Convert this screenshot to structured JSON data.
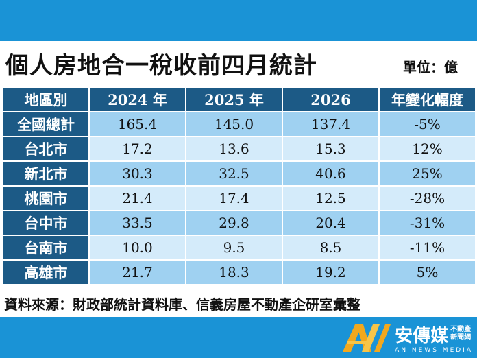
{
  "title": "個人房地合一稅收前四月統計",
  "unit": "單位：億",
  "table": {
    "headers": [
      "地區別",
      "2024 年",
      "2025 年",
      "2026",
      "年變化幅度"
    ],
    "rows": [
      {
        "region": "全國總計",
        "v2024": "165.4",
        "v2025": "145.0",
        "v2026": "137.4",
        "change": "-5%"
      },
      {
        "region": "台北市",
        "v2024": "17.2",
        "v2025": "13.6",
        "v2026": "15.3",
        "change": "12%"
      },
      {
        "region": "新北市",
        "v2024": "30.3",
        "v2025": "32.5",
        "v2026": "40.6",
        "change": "25%"
      },
      {
        "region": "桃園市",
        "v2024": "21.4",
        "v2025": "17.4",
        "v2026": "12.5",
        "change": "-28%"
      },
      {
        "region": "台中市",
        "v2024": "33.5",
        "v2025": "29.8",
        "v2026": "20.4",
        "change": "-31%"
      },
      {
        "region": "台南市",
        "v2024": "10.0",
        "v2025": "9.5",
        "v2026": "8.5",
        "change": "-11%"
      },
      {
        "region": "高雄市",
        "v2024": "21.7",
        "v2025": "18.3",
        "v2026": "19.2",
        "change": "5%"
      }
    ]
  },
  "source": "資料來源：財政部統計資料庫、信義房屋不動產企研室彙整",
  "logo": {
    "name": "安傳媒",
    "side_top": "不動產",
    "side_bottom": "新聞網",
    "english": "AN NEWS MEDIA"
  },
  "colors": {
    "band": "#1a93d6",
    "header": "#1c5a86",
    "row_dark": "#9fd1f1",
    "row_light": "#d4ebfa",
    "logo_gold": "#f2a81d"
  }
}
